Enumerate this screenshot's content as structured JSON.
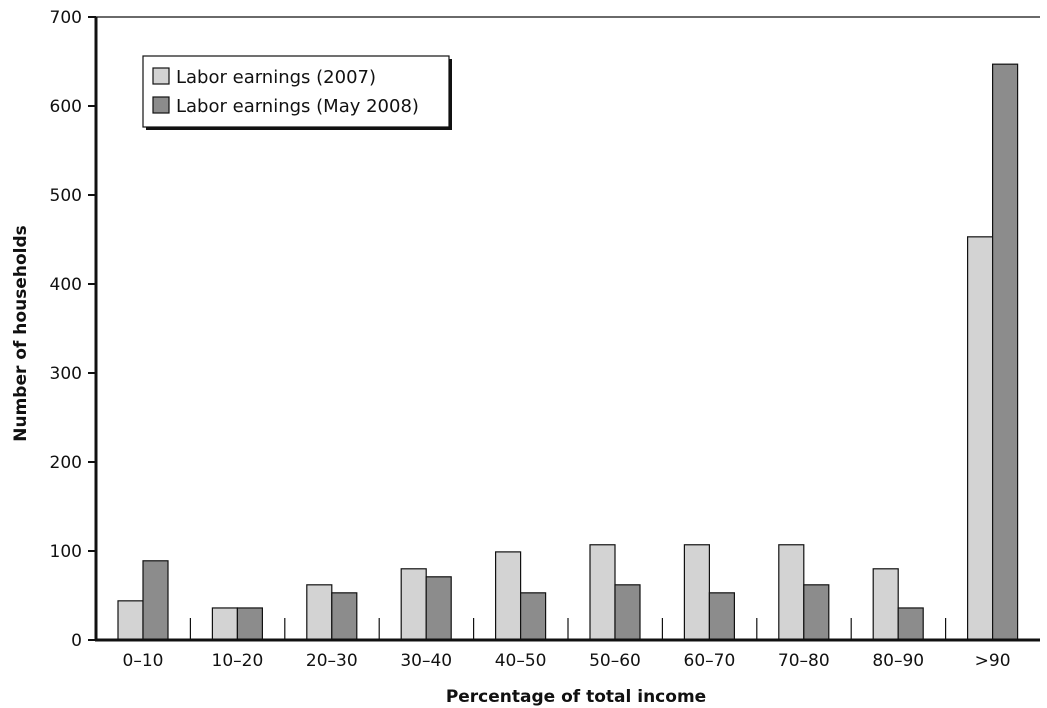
{
  "chart_data": {
    "type": "bar",
    "title": "",
    "xlabel": "Percentage of total income",
    "ylabel": "Number of households",
    "ylim": [
      0,
      700
    ],
    "yticks": [
      0,
      100,
      200,
      300,
      400,
      500,
      600,
      700
    ],
    "grid": false,
    "legend_position": "top-left",
    "categories": [
      "0–10",
      "10–20",
      "20–30",
      "30–40",
      "40–50",
      "50–60",
      "60–70",
      "70–80",
      "80–90",
      ">90"
    ],
    "series": [
      {
        "name": "Labor earnings (2007)",
        "color": "#d3d3d3",
        "values": [
          44,
          36,
          62,
          80,
          99,
          107,
          107,
          107,
          80,
          453
        ]
      },
      {
        "name": "Labor earnings (May 2008)",
        "color": "#8c8c8c",
        "values": [
          89,
          36,
          53,
          71,
          53,
          62,
          53,
          62,
          36,
          647
        ]
      }
    ]
  }
}
